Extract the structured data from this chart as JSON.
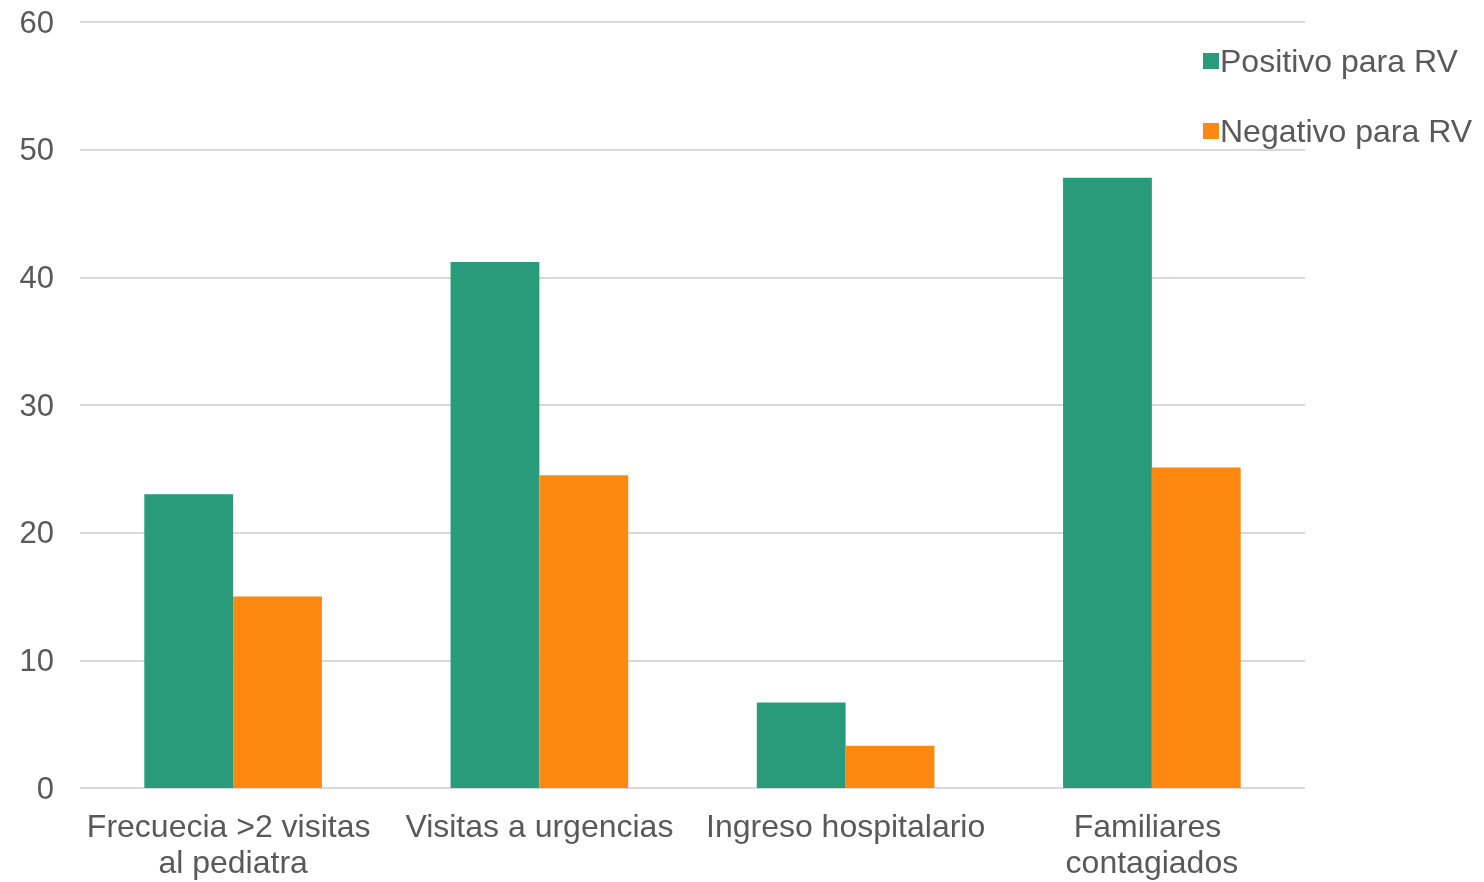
{
  "chart_data": {
    "type": "bar",
    "categories": [
      "Frecuecia >2 visitas al pediatra",
      "Visitas a urgencias",
      "Ingreso hospitalario",
      "Familiares contagiados"
    ],
    "series": [
      {
        "name": "Positivo para RV",
        "color": "#2a9b7a",
        "values": [
          23,
          41.2,
          6.7,
          47.8
        ]
      },
      {
        "name": "Negativo para RV",
        "color": "#fe8812",
        "values": [
          15,
          24.5,
          3.3,
          25.1
        ]
      }
    ],
    "ylim": [
      0,
      60
    ],
    "yticks": [
      0,
      10,
      20,
      30,
      40,
      50,
      60
    ],
    "grid": "y",
    "legend": "top right"
  }
}
